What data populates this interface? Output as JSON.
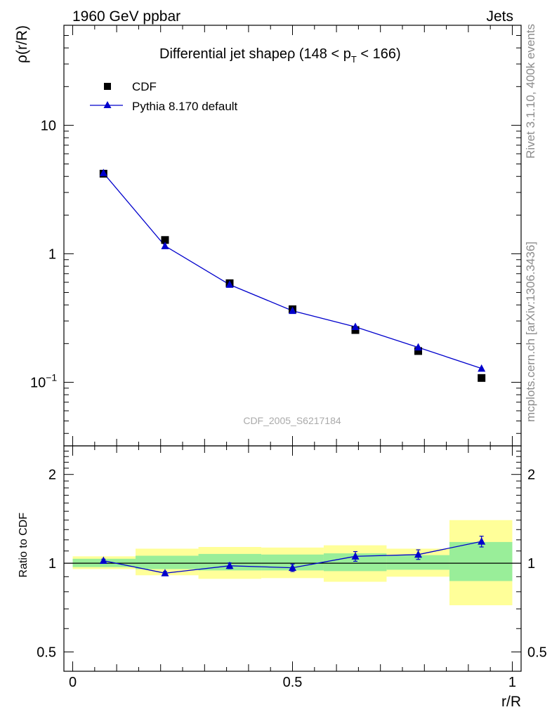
{
  "header": {
    "left": "1960 GeV ppbar",
    "right": "Jets"
  },
  "side_texts": {
    "rivet": "Rivet 3.1.10,  400k events",
    "mcplots": "mcplots.cern.ch [arXiv:1306.3436]"
  },
  "watermark": "CDF_2005_S6217184",
  "chart_data": [
    {
      "type": "scatter",
      "panel": "main",
      "title": "Differential jet shapeρ (148 < p",
      "title_sub": "T",
      "title_end": " < 166)",
      "ylabel": "ρ(r/R)",
      "xlim": [
        -0.02,
        1.02
      ],
      "ylim": [
        0.032,
        60
      ],
      "yscale": "log",
      "yticks": [
        {
          "value": 10,
          "label": "10"
        },
        {
          "value": 1,
          "label": "1"
        },
        {
          "value": 0.1,
          "label": "10",
          "sup": "−1"
        }
      ],
      "legend": {
        "position": "top-left",
        "entries": [
          "CDF",
          "Pythia 8.170 default"
        ]
      },
      "series": [
        {
          "name": "CDF",
          "marker": "square",
          "color": "#000000",
          "x": [
            0.07,
            0.21,
            0.357,
            0.5,
            0.643,
            0.786,
            0.93
          ],
          "y": [
            4.2,
            1.28,
            0.59,
            0.37,
            0.255,
            0.175,
            0.108
          ]
        },
        {
          "name": "Pythia 8.170 default",
          "marker": "triangle",
          "color": "#0000cc",
          "x": [
            0.07,
            0.21,
            0.357,
            0.5,
            0.643,
            0.786,
            0.93
          ],
          "y": [
            4.25,
            1.15,
            0.575,
            0.36,
            0.27,
            0.187,
            0.128
          ]
        }
      ]
    },
    {
      "type": "scatter",
      "panel": "ratio",
      "xlabel": "r/R",
      "ylabel": "Ratio to CDF",
      "xlim": [
        -0.02,
        1.02
      ],
      "ylim": [
        0.43,
        2.5
      ],
      "yscale": "log",
      "xticks": [
        {
          "value": 0,
          "label": "0"
        },
        {
          "value": 0.5,
          "label": "0.5"
        },
        {
          "value": 1,
          "label": "1"
        }
      ],
      "yticks": [
        {
          "value": 2,
          "label": "2"
        },
        {
          "value": 1,
          "label": "1"
        },
        {
          "value": 0.5,
          "label": "0.5"
        }
      ],
      "bands": [
        {
          "x0": 0.0,
          "x1": 0.143,
          "y_lo": 0.955,
          "y_hi": 1.055,
          "y_lo2": 0.97,
          "y_hi2": 1.035
        },
        {
          "x0": 0.143,
          "x1": 0.286,
          "y_lo": 0.91,
          "y_hi": 1.12,
          "y_lo2": 0.955,
          "y_hi2": 1.06
        },
        {
          "x0": 0.286,
          "x1": 0.429,
          "y_lo": 0.885,
          "y_hi": 1.135,
          "y_lo2": 0.945,
          "y_hi2": 1.075
        },
        {
          "x0": 0.429,
          "x1": 0.571,
          "y_lo": 0.89,
          "y_hi": 1.13,
          "y_lo2": 0.945,
          "y_hi2": 1.07
        },
        {
          "x0": 0.571,
          "x1": 0.714,
          "y_lo": 0.865,
          "y_hi": 1.15,
          "y_lo2": 0.94,
          "y_hi2": 1.08
        },
        {
          "x0": 0.714,
          "x1": 0.857,
          "y_lo": 0.9,
          "y_hi": 1.12,
          "y_lo2": 0.95,
          "y_hi2": 1.065
        },
        {
          "x0": 0.857,
          "x1": 1.0,
          "y_lo": 0.72,
          "y_hi": 1.4,
          "y_lo2": 0.87,
          "y_hi2": 1.18
        }
      ],
      "series": [
        {
          "name": "Pythia 8.170 default",
          "marker": "triangle",
          "color": "#0000cc",
          "x": [
            0.07,
            0.21,
            0.357,
            0.5,
            0.643,
            0.786,
            0.93
          ],
          "y": [
            1.02,
            0.925,
            0.98,
            0.965,
            1.055,
            1.07,
            1.185
          ],
          "err": [
            0.012,
            0.012,
            0.022,
            0.028,
            0.04,
            0.04,
            0.05
          ]
        }
      ]
    }
  ]
}
